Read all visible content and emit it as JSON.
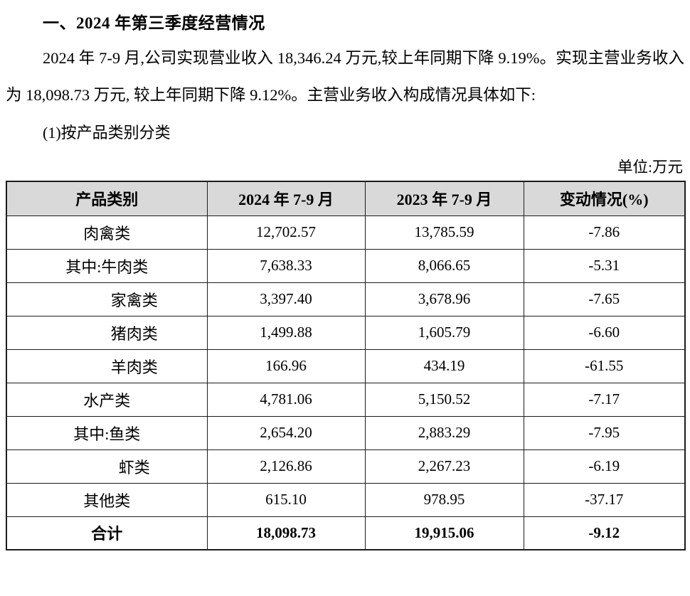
{
  "doc": {
    "heading": "一、2024 年第三季度经营情况",
    "paragraph": "2024 年 7-9 月,公司实现营业收入 18,346.24 万元,较上年同期下降 9.19%。实现主营业务收入为 18,098.73 万元, 较上年同期下降 9.12%。主营业务收入构成情况具体如下:",
    "sub_heading": "(1)按产品类别分类",
    "unit_label": "单位:万元"
  },
  "table": {
    "headers": [
      "产品类别",
      "2024 年 7-9 月",
      "2023 年 7-9 月",
      "变动情况(%)"
    ],
    "rows": [
      {
        "label": "肉禽类",
        "y2024": "12,702.57",
        "y2023": "13,785.59",
        "change": "-7.86"
      },
      {
        "label": "其中:牛肉类",
        "y2024": "7,638.33",
        "y2023": "8,066.65",
        "change": "-5.31"
      },
      {
        "label": "家禽类",
        "y2024": "3,397.40",
        "y2023": "3,678.96",
        "change": "-7.65"
      },
      {
        "label": "猪肉类",
        "y2024": "1,499.88",
        "y2023": "1,605.79",
        "change": "-6.60"
      },
      {
        "label": "羊肉类",
        "y2024": "166.96",
        "y2023": "434.19",
        "change": "-61.55"
      },
      {
        "label": "水产类",
        "y2024": "4,781.06",
        "y2023": "5,150.52",
        "change": "-7.17"
      },
      {
        "label": "其中:鱼类",
        "y2024": "2,654.20",
        "y2023": "2,883.29",
        "change": "-7.95"
      },
      {
        "label": "虾类",
        "y2024": "2,126.86",
        "y2023": "2,267.23",
        "change": "-6.19"
      },
      {
        "label": "其他类",
        "y2024": "615.10",
        "y2023": "978.95",
        "change": "-37.17"
      },
      {
        "label": "合计",
        "y2024": "18,098.73",
        "y2023": "19,915.06",
        "change": "-9.12"
      }
    ]
  },
  "colors": {
    "header_bg": "#d9d9d9",
    "border": "#1c1c1c",
    "text": "#000000"
  }
}
